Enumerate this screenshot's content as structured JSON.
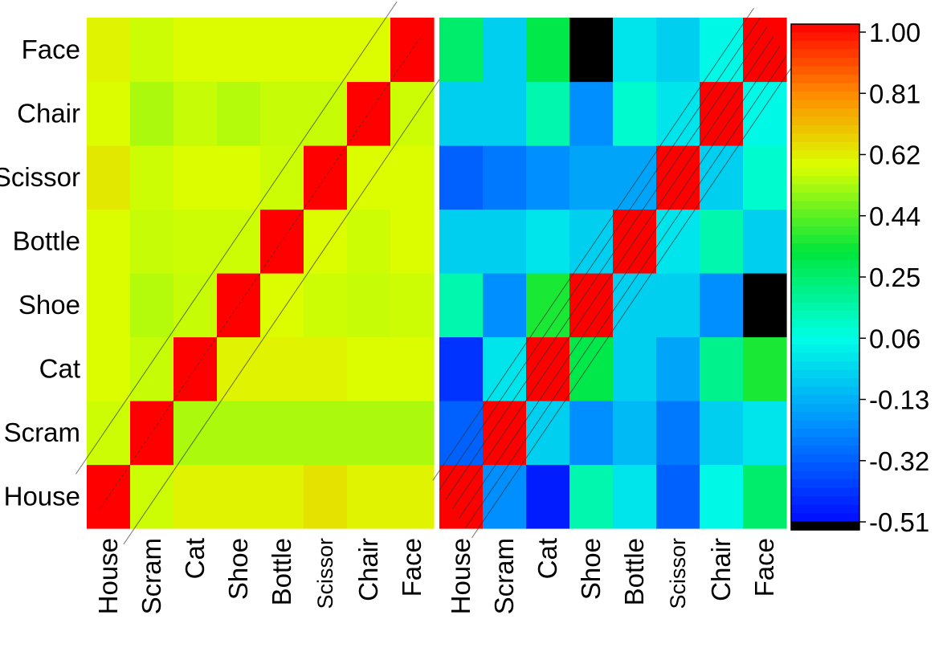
{
  "chart_data": [
    {
      "type": "heatmap",
      "title": "",
      "categories": [
        "House",
        "Scram",
        "Cat",
        "Shoe",
        "Bottle",
        "Scissor",
        "Chair",
        "Face"
      ],
      "rows_bottom_to_top": [
        "House",
        "Scram",
        "Cat",
        "Shoe",
        "Bottle",
        "Scissor",
        "Chair",
        "Face"
      ],
      "values": [
        [
          1.0,
          0.56,
          0.6,
          0.6,
          0.6,
          0.63,
          0.6,
          0.6
        ],
        [
          0.56,
          1.0,
          0.52,
          0.52,
          0.52,
          0.52,
          0.52,
          0.52
        ],
        [
          0.58,
          0.55,
          1.0,
          0.6,
          0.6,
          0.6,
          0.58,
          0.58
        ],
        [
          0.58,
          0.53,
          0.55,
          1.0,
          0.58,
          0.56,
          0.55,
          0.56
        ],
        [
          0.58,
          0.55,
          0.56,
          0.56,
          1.0,
          0.58,
          0.56,
          0.58
        ],
        [
          0.62,
          0.56,
          0.58,
          0.58,
          0.56,
          1.0,
          0.58,
          0.58
        ],
        [
          0.58,
          0.52,
          0.55,
          0.53,
          0.55,
          0.55,
          1.0,
          0.56
        ],
        [
          0.6,
          0.56,
          0.58,
          0.58,
          0.58,
          0.58,
          0.58,
          1.0
        ]
      ]
    },
    {
      "type": "heatmap",
      "title": "",
      "categories": [
        "House",
        "Scram",
        "Cat",
        "Shoe",
        "Bottle",
        "Scissor",
        "Chair",
        "Face"
      ],
      "rows_bottom_to_top": [
        "House",
        "Scram",
        "Cat",
        "Shoe",
        "Bottle",
        "Scissor",
        "Chair",
        "Face"
      ],
      "values": [
        [
          1.0,
          -0.2,
          -0.45,
          0.15,
          0.0,
          -0.3,
          0.05,
          0.25
        ],
        [
          -0.3,
          1.0,
          -0.05,
          -0.2,
          -0.1,
          -0.25,
          -0.05,
          0.0
        ],
        [
          -0.4,
          0.0,
          1.0,
          0.3,
          -0.05,
          -0.15,
          0.2,
          0.35
        ],
        [
          0.15,
          -0.2,
          0.35,
          1.0,
          -0.05,
          -0.05,
          -0.2,
          -0.51
        ],
        [
          -0.05,
          -0.05,
          0.0,
          -0.05,
          1.0,
          0.0,
          0.15,
          -0.05
        ],
        [
          -0.3,
          -0.25,
          -0.2,
          -0.15,
          -0.15,
          1.0,
          -0.05,
          0.1
        ],
        [
          -0.05,
          -0.05,
          0.15,
          -0.2,
          0.1,
          0.0,
          1.0,
          0.05
        ],
        [
          0.25,
          -0.05,
          0.3,
          -0.51,
          0.0,
          -0.05,
          0.05,
          1.0
        ]
      ]
    }
  ],
  "colorbar": {
    "min": -0.51,
    "max": 1.0,
    "tick_labels": [
      "1.00",
      "0.81",
      "0.62",
      "0.44",
      "0.25",
      "0.06",
      "-0.13",
      "-0.32",
      "-0.51"
    ]
  }
}
